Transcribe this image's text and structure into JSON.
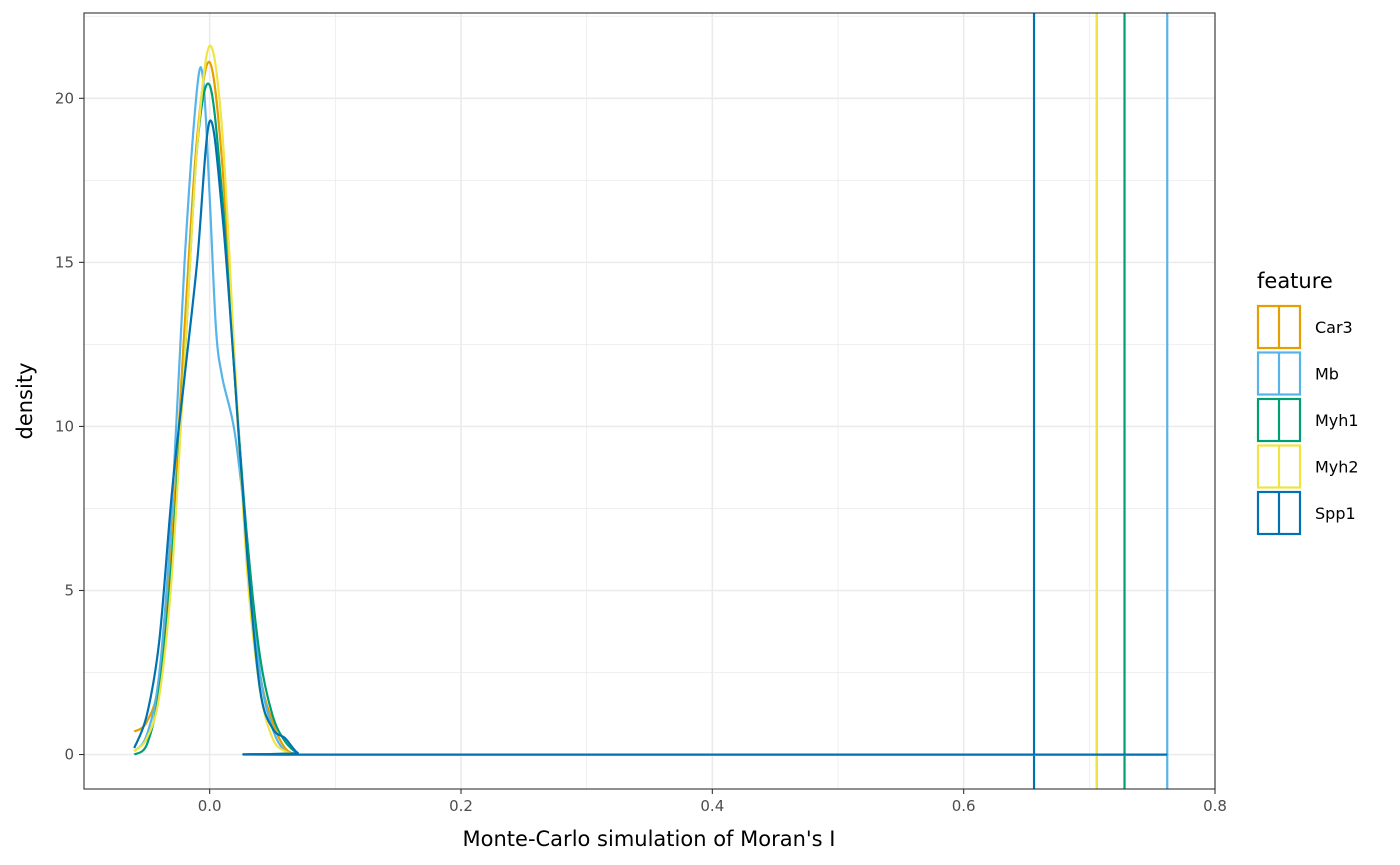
{
  "chart_data": {
    "type": "line",
    "xlabel": "Monte-Carlo simulation of Moran's I",
    "ylabel": "density",
    "xlim": [
      -0.1,
      0.8
    ],
    "ylim": [
      -1.05,
      22.6
    ],
    "x_ticks": [
      0.0,
      0.2,
      0.4,
      0.6,
      0.8
    ],
    "x_tick_labels": [
      "0.0",
      "0.2",
      "0.4",
      "0.6",
      "0.8"
    ],
    "y_ticks": [
      0,
      5,
      10,
      15,
      20
    ],
    "y_tick_labels": [
      "0",
      "5",
      "10",
      "15",
      "20"
    ],
    "grid": true,
    "legend": {
      "title": "feature",
      "position": "right"
    },
    "series": [
      {
        "name": "Car3",
        "color": "#E69F00",
        "observed": 0.706,
        "x": [
          -0.06,
          -0.05,
          -0.04,
          -0.03,
          -0.02,
          -0.01,
          0.0,
          0.01,
          0.02,
          0.03,
          0.04,
          0.05,
          0.06,
          0.07,
          0.08,
          0.762
        ],
        "y": [
          0.7,
          1.0,
          2.3,
          6.5,
          13.0,
          18.8,
          21.1,
          18.0,
          11.5,
          6.0,
          2.5,
          1.0,
          0.2,
          0.0,
          0.0,
          0.0
        ]
      },
      {
        "name": "Mb",
        "color": "#56B4E9",
        "observed": 0.762,
        "x": [
          -0.06,
          -0.05,
          -0.04,
          -0.03,
          -0.02,
          -0.01,
          -0.005,
          0.0,
          0.005,
          0.01,
          0.02,
          0.03,
          0.04,
          0.05,
          0.06,
          0.07,
          0.08,
          0.762
        ],
        "y": [
          0.1,
          0.6,
          2.5,
          7.5,
          15.0,
          20.3,
          20.5,
          17.0,
          13.0,
          11.5,
          9.8,
          6.5,
          2.5,
          0.8,
          0.1,
          0.0,
          0.0,
          0.0
        ]
      },
      {
        "name": "Myh1",
        "color": "#009E73",
        "observed": 0.728,
        "x": [
          -0.06,
          -0.05,
          -0.04,
          -0.03,
          -0.02,
          -0.01,
          0.0,
          0.01,
          0.02,
          0.03,
          0.04,
          0.05,
          0.06,
          0.07,
          0.08,
          0.762
        ],
        "y": [
          0.0,
          0.3,
          2.0,
          6.0,
          12.0,
          18.5,
          20.4,
          17.0,
          11.5,
          6.5,
          3.0,
          1.2,
          0.4,
          0.05,
          0.0,
          0.0
        ]
      },
      {
        "name": "Myh2",
        "color": "#F0E442",
        "observed": 0.706,
        "x": [
          -0.06,
          -0.05,
          -0.04,
          -0.03,
          -0.02,
          -0.01,
          0.0,
          0.01,
          0.02,
          0.03,
          0.04,
          0.05,
          0.06,
          0.07,
          0.08,
          0.762
        ],
        "y": [
          0.1,
          0.5,
          1.8,
          5.5,
          12.0,
          18.5,
          21.6,
          19.0,
          12.0,
          5.5,
          2.0,
          0.5,
          0.1,
          0.0,
          0.0,
          0.0
        ]
      },
      {
        "name": "Spp1",
        "color": "#0072B2",
        "observed": 0.656,
        "x": [
          -0.06,
          -0.05,
          -0.04,
          -0.03,
          -0.02,
          -0.01,
          0.0,
          0.01,
          0.02,
          0.03,
          0.04,
          0.05,
          0.06,
          0.07,
          0.08,
          0.762
        ],
        "y": [
          0.2,
          1.2,
          3.5,
          8.0,
          11.5,
          15.0,
          19.3,
          16.5,
          11.5,
          6.0,
          2.0,
          0.8,
          0.5,
          0.05,
          0.0,
          0.0
        ]
      }
    ]
  }
}
